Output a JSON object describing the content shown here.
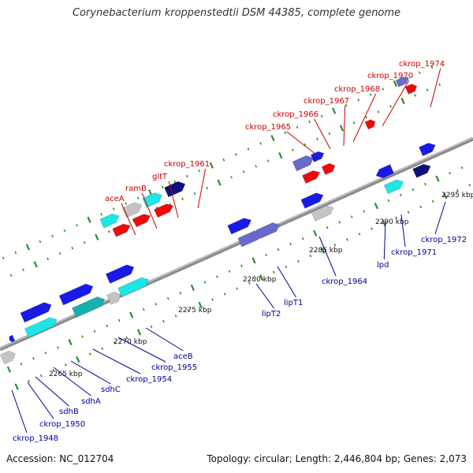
{
  "title": "Corynebacterium kroppenstedtii DSM 44385, complete genome",
  "footer": {
    "accession": "Accession: NC_012704",
    "summary": "Topology: circular; Length: 2,446,804 bp; Genes: 2,073"
  },
  "colors": {
    "top_labels": "#cc0000",
    "bottom_labels": "#000099",
    "backbone": "#8c8c8c",
    "tick_major": "#2e8b2e",
    "tick_minor": "#2e8b2e",
    "gene_blue": "#1a1ae6",
    "gene_slate": "#6a6acc",
    "gene_navy": "#10107a",
    "gene_cyan": "#1ee6e6",
    "gene_teal": "#18b0b0",
    "gene_gray": "#c4c4c4",
    "gene_dark_gray": "#6a6a6a",
    "gene_red": "#ee0a0a"
  },
  "scale_labels": [
    "2265 kbp",
    "2270 kbp",
    "2275 kbp",
    "2280 kbp",
    "2285 kbp",
    "2290 kbp",
    "2295 kbp"
  ],
  "top_labels": [
    "aceA",
    "ramB",
    "gltT",
    "ckrop_1961",
    "ckrop_1965",
    "ckrop_1966",
    "ckrop_1967",
    "ckrop_1968",
    "ckrop_1970",
    "ckrop_1974"
  ],
  "bottom_labels": [
    "ckrop_1948",
    "ckrop_1950",
    "sdhB",
    "sdhA",
    "sdhC",
    "ckrop_1954",
    "ckrop_1955",
    "aceB",
    "lipT2",
    "lipT1",
    "ckrop_1964",
    "lpd",
    "ckrop_1971",
    "ckrop_1972"
  ],
  "genes": [
    {
      "color": "gene_blue",
      "dir": 1
    },
    {
      "color": "gene_gray",
      "dir": 1
    },
    {
      "color": "gene_blue",
      "dir": -1
    },
    {
      "color": "gene_cyan",
      "dir": 1
    },
    {
      "color": "gene_blue",
      "dir": 1
    },
    {
      "color": "gene_teal",
      "dir": 1
    },
    {
      "color": "gene_blue",
      "dir": 1
    },
    {
      "color": "gene_gray",
      "dir": 1
    },
    {
      "color": "gene_blue",
      "dir": 1
    },
    {
      "color": "gene_cyan",
      "dir": 1
    },
    {
      "color": "gene_cyan",
      "dir": 1
    },
    {
      "color": "gene_gray",
      "dir": 1
    },
    {
      "color": "gene_cyan",
      "dir": 1
    },
    {
      "color": "gene_navy",
      "dir": 1
    },
    {
      "color": "gene_red",
      "dir": 1
    },
    {
      "color": "gene_red",
      "dir": 1
    },
    {
      "color": "gene_red",
      "dir": 1
    },
    {
      "color": "gene_blue",
      "dir": 1
    },
    {
      "color": "gene_slate",
      "dir": 1
    },
    {
      "color": "gene_slate",
      "dir": 1
    },
    {
      "color": "gene_blue",
      "dir": 1
    },
    {
      "color": "gene_gray",
      "dir": 1
    },
    {
      "color": "gene_slate",
      "dir": 1
    },
    {
      "color": "gene_blue",
      "dir": 1
    },
    {
      "color": "gene_red",
      "dir": 1
    },
    {
      "color": "gene_red",
      "dir": 1
    },
    {
      "color": "gene_blue",
      "dir": -1
    },
    {
      "color": "gene_cyan",
      "dir": 1
    },
    {
      "color": "gene_navy",
      "dir": 1
    },
    {
      "color": "gene_red",
      "dir": 1
    },
    {
      "color": "gene_slate",
      "dir": 1
    },
    {
      "color": "gene_red",
      "dir": 1
    },
    {
      "color": "gene_blue",
      "dir": 1
    }
  ]
}
